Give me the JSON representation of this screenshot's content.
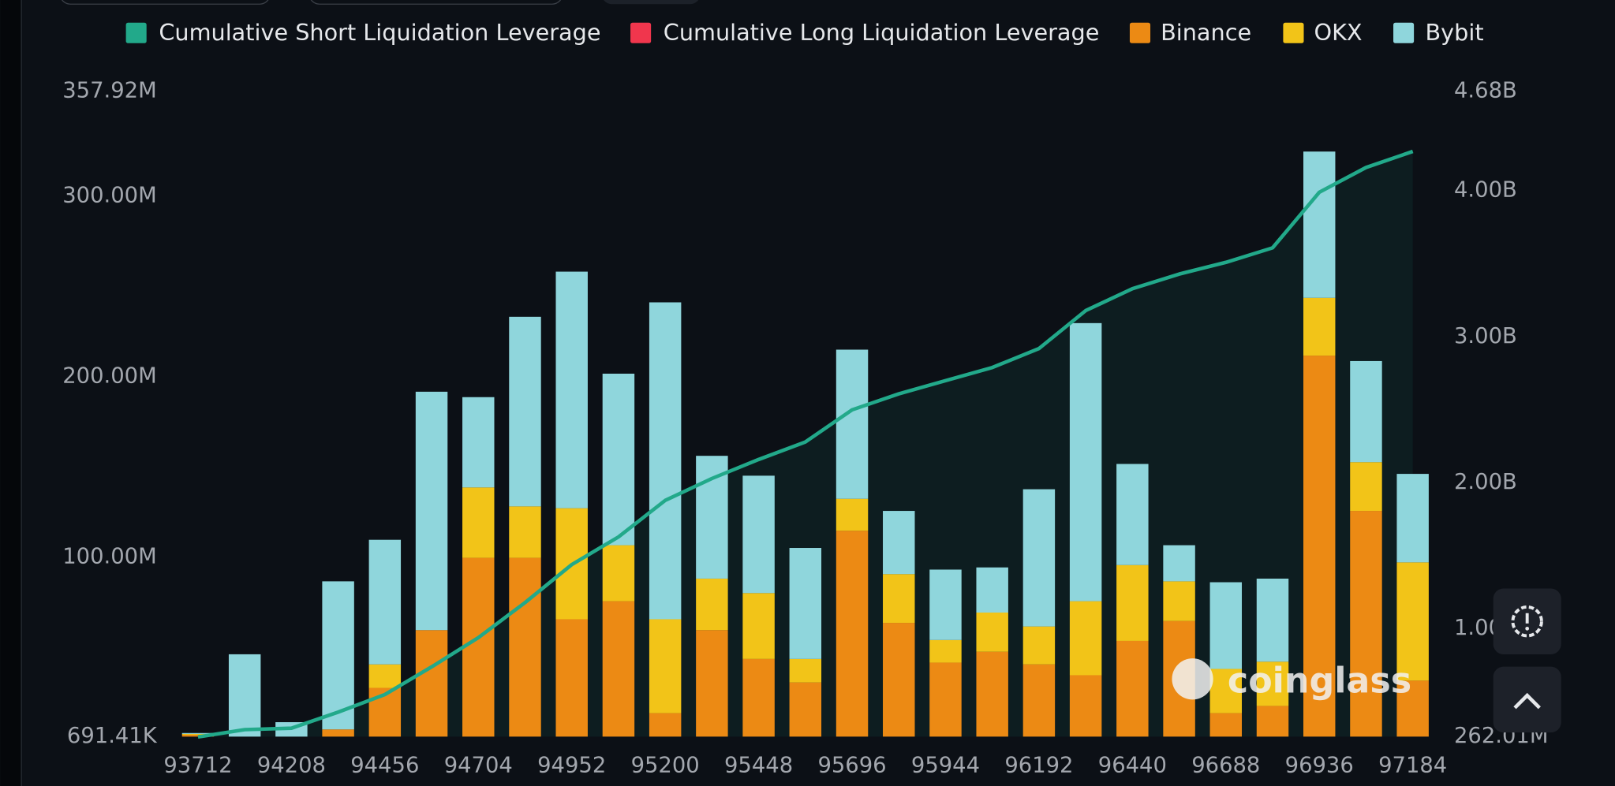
{
  "chart_data": {
    "type": "bar",
    "categories": [
      "93712",
      null,
      "94208",
      null,
      "94456",
      null,
      "94704",
      null,
      "94952",
      null,
      "95200",
      null,
      "95448",
      null,
      "95696",
      null,
      "95944",
      null,
      "96192",
      null,
      "96440",
      null,
      "96688",
      null,
      "96936",
      null,
      "97184"
    ],
    "series": [
      {
        "name": "Cumulative Short Liquidation Leverage",
        "color": "#22a98a",
        "axis": "y2",
        "values": [
          260000000,
          310000000,
          320000000,
          430000000,
          550000000,
          740000000,
          940000000,
          1180000000,
          1440000000,
          1630000000,
          1880000000,
          2030000000,
          2160000000,
          2280000000,
          2500000000,
          2610000000,
          2700000000,
          2790000000,
          2920000000,
          3180000000,
          3330000000,
          3430000000,
          3510000000,
          3610000000,
          3990000000,
          4160000000,
          4270000000
        ]
      },
      {
        "name": "Cumulative Long Liquidation Leverage",
        "color": "#f0364d",
        "axis": "y2",
        "values": [
          null,
          null,
          null,
          null,
          null,
          null,
          null,
          null,
          null,
          null,
          null,
          null,
          null,
          null,
          null,
          null,
          null,
          null,
          null,
          null,
          null,
          null,
          null,
          null,
          null,
          null,
          null
        ]
      },
      {
        "name": "Binance",
        "color": "#ec8a14",
        "values": [
          1000000,
          0,
          0,
          4000000,
          27000000,
          59000000,
          99000000,
          99000000,
          65000000,
          75000000,
          13000000,
          59000000,
          43000000,
          30000000,
          114000000,
          63000000,
          41000000,
          47000000,
          40000000,
          34000000,
          53000000,
          64000000,
          13000000,
          17000000,
          211000000,
          125000000,
          31000000
        ]
      },
      {
        "name": "OKX",
        "color": "#f2c418",
        "values": [
          500000,
          0,
          0,
          0,
          13000000,
          0,
          39000000,
          28500000,
          61500000,
          31000000,
          52000000,
          28500000,
          36500000,
          13000000,
          17700000,
          27000000,
          12500000,
          21700000,
          21000000,
          41000000,
          42000000,
          22000000,
          24500000,
          24500000,
          32000000,
          27000000,
          65500000
        ]
      },
      {
        "name": "Bybit",
        "color": "#8fd6dc",
        "values": [
          500000,
          45600000,
          8000000,
          82000000,
          69000000,
          132000000,
          50000000,
          105000000,
          131000000,
          95000000,
          175500000,
          68000000,
          65000000,
          61500000,
          82600000,
          35000000,
          39000000,
          25000000,
          76000000,
          154000000,
          56000000,
          20000000,
          48000000,
          46000000,
          81000000,
          56000000,
          49000000
        ]
      }
    ],
    "ylim": [
      691410,
      357920000
    ],
    "yticks": [
      {
        "value": 691410,
        "label": "691.41K"
      },
      {
        "value": 100000000,
        "label": "100.00M"
      },
      {
        "value": 200000000,
        "label": "200.00M"
      },
      {
        "value": 300000000,
        "label": "300.00M"
      },
      {
        "value": 357920000,
        "label": "357.92M"
      }
    ],
    "y2lim": [
      262010000,
      4680000000
    ],
    "y2ticks": [
      {
        "value": 262010000,
        "label": "262.01M"
      },
      {
        "value": 1000000000,
        "label": "1.00B"
      },
      {
        "value": 2000000000,
        "label": "2.00B"
      },
      {
        "value": 3000000000,
        "label": "3.00B"
      },
      {
        "value": 4000000000,
        "label": "4.00B"
      },
      {
        "value": 4680000000,
        "label": "4.68B"
      }
    ],
    "grid": true,
    "legend": "top",
    "watermark": "coinglass"
  }
}
